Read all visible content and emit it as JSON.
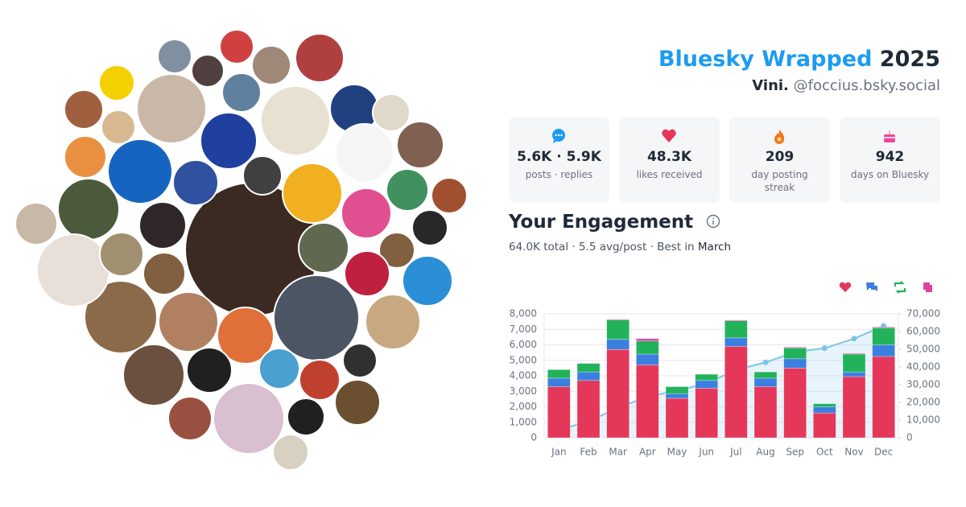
{
  "header": {
    "title": "Bluesky Wrapped",
    "year": "2025",
    "display_name": "Vini.",
    "handle": "@foccius.bsky.social"
  },
  "stats": [
    {
      "value": "5.6K · 5.9K",
      "label": "posts · replies"
    },
    {
      "value": "48.3K",
      "label": "likes received"
    },
    {
      "value": "209",
      "label": "day posting streak"
    },
    {
      "value": "942",
      "label": "days on Bluesky"
    }
  ],
  "engagement": {
    "title": "Your Engagement",
    "summary": "64.0K total · 5.5 avg/post · Best in",
    "best_month": "March"
  },
  "chart_data": {
    "type": "bar",
    "stacked": true,
    "categories": [
      "Jan",
      "Feb",
      "Mar",
      "Apr",
      "May",
      "Jun",
      "Jul",
      "Aug",
      "Sep",
      "Oct",
      "Nov",
      "Dec"
    ],
    "series": [
      {
        "color": "#e5375a",
        "values": [
          3300,
          3700,
          5700,
          4700,
          2550,
          3200,
          5900,
          3300,
          4500,
          1600,
          3950,
          5250
        ]
      },
      {
        "color": "#3b7fe0",
        "values": [
          550,
          550,
          650,
          700,
          300,
          500,
          550,
          550,
          600,
          400,
          300,
          750
        ]
      },
      {
        "color": "#22b35a",
        "values": [
          550,
          550,
          1250,
          850,
          450,
          400,
          1100,
          400,
          700,
          200,
          1150,
          1100
        ]
      },
      {
        "color": "#e040a0",
        "values": [
          0,
          0,
          50,
          150,
          0,
          0,
          50,
          0,
          50,
          0,
          50,
          50
        ]
      },
      {
        "type": "line",
        "axis": "y2",
        "color": "#7cc4ea",
        "values": [
          4500,
          9300,
          16900,
          23300,
          26600,
          30700,
          38300,
          42600,
          48400,
          50600,
          56000,
          63200
        ]
      }
    ],
    "ylim": [
      0,
      8000
    ],
    "yticks": [
      0,
      {
        "value": 1000,
        "label": "1,000"
      },
      {
        "value": 2000,
        "label": "2,000"
      },
      {
        "value": 3000,
        "label": "3,000"
      },
      {
        "value": 4000,
        "label": "4,000"
      },
      {
        "value": 5000,
        "label": "5,000"
      },
      {
        "value": 6000,
        "label": "6,000"
      },
      {
        "value": 7000,
        "label": "7,000"
      },
      {
        "value": 8000,
        "label": "8,000"
      }
    ],
    "y2lim": [
      0,
      70000
    ],
    "y2ticks": [
      0,
      {
        "value": 10000,
        "label": "10,000"
      },
      {
        "value": 20000,
        "label": "20,000"
      },
      {
        "value": 30000,
        "label": "30,000"
      },
      {
        "value": 40000,
        "label": "40,000"
      },
      {
        "value": 50000,
        "label": "50,000"
      },
      {
        "value": 60000,
        "label": "60,000"
      },
      {
        "value": 70000,
        "label": "70,000"
      }
    ],
    "grid": true
  }
}
